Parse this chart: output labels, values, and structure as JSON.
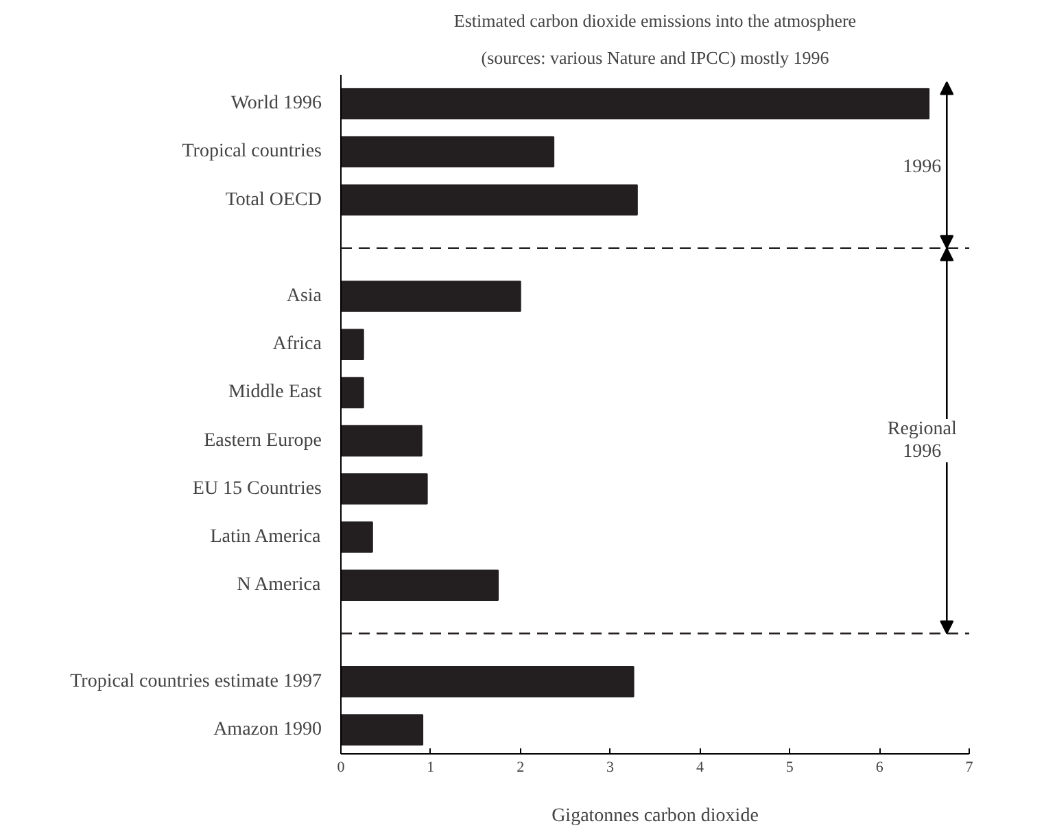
{
  "chart_data": {
    "type": "bar",
    "orientation": "horizontal",
    "title": "Estimated carbon dioxide emissions into the atmosphere",
    "subtitle": "(sources: various Nature and IPCC) mostly 1996",
    "xlabel": "Gigatonnes carbon dioxide",
    "categories": [
      "World 1996",
      "Tropical countries",
      "Total OECD",
      null,
      "Asia",
      "Africa",
      "Middle East",
      "Eastern Europe",
      "EU 15 Countries",
      "Latin America",
      "N America",
      null,
      "Tropical countries estimate 1997",
      "Amazon 1990"
    ],
    "values": [
      6.55,
      2.37,
      3.3,
      null,
      2.0,
      0.25,
      0.25,
      0.9,
      0.96,
      0.35,
      1.75,
      null,
      3.26,
      0.91
    ],
    "color": "#231f20",
    "xlim": [
      0,
      7
    ],
    "xticks": [
      0,
      1,
      2,
      3,
      4,
      5,
      6,
      7
    ],
    "annotations": [
      "1996",
      "Regional\n1996"
    ],
    "grid": false
  }
}
